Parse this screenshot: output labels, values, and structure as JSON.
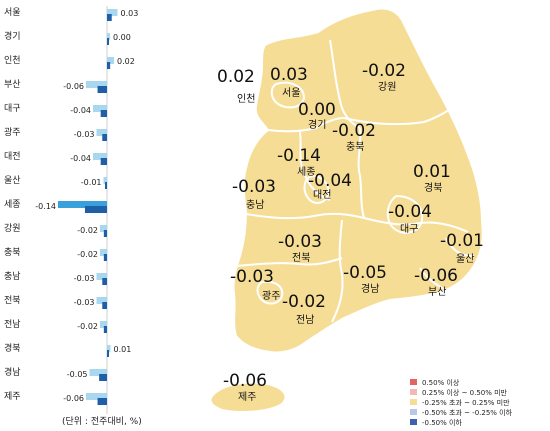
{
  "chart_data": [
    {
      "type": "bar",
      "orientation": "horizontal",
      "categories": [
        "서울",
        "경기",
        "인천",
        "부산",
        "대구",
        "광주",
        "대전",
        "울산",
        "세종",
        "강원",
        "충북",
        "충남",
        "전북",
        "전남",
        "경북",
        "경남",
        "제주"
      ],
      "values": [
        0.03,
        0.0,
        0.02,
        -0.06,
        -0.04,
        -0.03,
        -0.04,
        -0.01,
        -0.14,
        -0.02,
        -0.02,
        -0.03,
        -0.03,
        -0.02,
        0.01,
        -0.05,
        -0.06
      ],
      "value_labels": [
        "0.03",
        "0.00",
        "0.02",
        "-0.06",
        "-0.04",
        "-0.03",
        "-0.04",
        "-0.01",
        "-0.14",
        "-0.02",
        "-0.02",
        "-0.03",
        "-0.03",
        "-0.02",
        "0.01",
        "-0.05",
        "-0.06"
      ],
      "unit_note": "(단위 : 전주대비, %)",
      "colors": {
        "light": "#a8d8f0",
        "mid": "#3aa0dc",
        "dark": "#1f5fa8"
      }
    },
    {
      "type": "map",
      "regions": [
        {
          "name": "서울",
          "value": "0.03"
        },
        {
          "name": "경기",
          "value": "0.00"
        },
        {
          "name": "인천",
          "value": "0.02"
        },
        {
          "name": "강원",
          "value": "-0.02"
        },
        {
          "name": "충북",
          "value": "-0.02"
        },
        {
          "name": "세종",
          "value": "-0.14"
        },
        {
          "name": "대전",
          "value": "-0.04"
        },
        {
          "name": "충남",
          "value": "-0.03"
        },
        {
          "name": "경북",
          "value": "0.01"
        },
        {
          "name": "대구",
          "value": "-0.04"
        },
        {
          "name": "울산",
          "value": "-0.01"
        },
        {
          "name": "전북",
          "value": "-0.03"
        },
        {
          "name": "경남",
          "value": "-0.05"
        },
        {
          "name": "부산",
          "value": "-0.06"
        },
        {
          "name": "광주",
          "value": "-0.03"
        },
        {
          "name": "전남",
          "value": "-0.02"
        },
        {
          "name": "제주",
          "value": "-0.06"
        }
      ],
      "legend": [
        {
          "label": "0.50% 이상",
          "color": "#e06666"
        },
        {
          "label": "0.25% 이상 ~ 0.50% 미만",
          "color": "#f4b6b6"
        },
        {
          "label": "-0.25% 초과 ~ 0.25% 미만",
          "color": "#f6dd96"
        },
        {
          "label": "-0.50% 초과 ~ -0.25% 이하",
          "color": "#b9c6e8"
        },
        {
          "label": "-0.50% 이하",
          "color": "#3f5fb0"
        }
      ],
      "land_color": "#f6dd96",
      "border_color": "#ffffff"
    }
  ]
}
